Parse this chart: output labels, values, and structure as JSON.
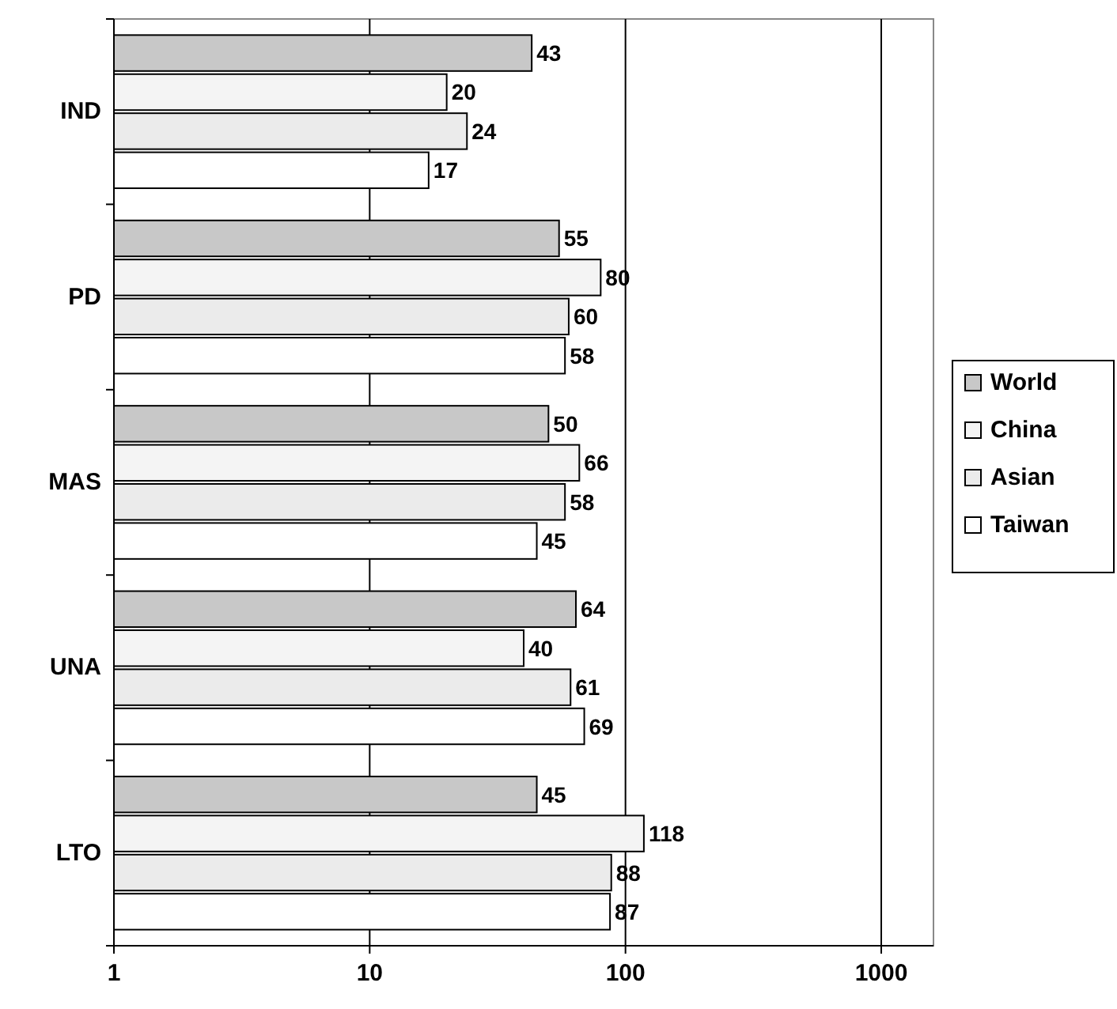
{
  "chart_data": {
    "type": "bar",
    "orientation": "horizontal",
    "categories": [
      "IND",
      "PD",
      "MAS",
      "UNA",
      "LTO"
    ],
    "series": [
      {
        "name": "World",
        "color": "#c8c8c8",
        "values": [
          43,
          55,
          50,
          64,
          45
        ]
      },
      {
        "name": "China",
        "color": "#f4f4f4",
        "values": [
          20,
          80,
          66,
          40,
          118
        ]
      },
      {
        "name": "Asian",
        "color": "#ebebeb",
        "values": [
          24,
          60,
          58,
          61,
          88
        ]
      },
      {
        "name": "Taiwan",
        "color": "#ffffff",
        "values": [
          17,
          58,
          45,
          69,
          87
        ]
      }
    ],
    "log": "x",
    "xlim": [
      1,
      1600
    ],
    "xticks": [
      1,
      10,
      100,
      1000
    ],
    "grid": "x",
    "legend": "right",
    "data_labels": true
  }
}
